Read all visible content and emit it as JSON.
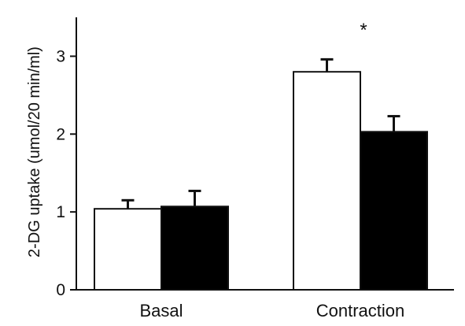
{
  "chart_data": {
    "type": "bar",
    "title": "",
    "xlabel": "",
    "ylabel": "2-DG uptake (umol/20 min/ml)",
    "ylim": [
      0,
      3.5
    ],
    "yticks": [
      "0",
      "1",
      "2",
      "3"
    ],
    "categories": [
      "Basal",
      "Contraction"
    ],
    "series": [
      {
        "fill": "#ffffff",
        "values": [
          1.04,
          2.8
        ],
        "errors": [
          0.11,
          0.16
        ]
      },
      {
        "fill": "#000000",
        "values": [
          1.07,
          2.03
        ],
        "errors": [
          0.2,
          0.2
        ]
      }
    ],
    "annotations": [
      {
        "category": "Contraction",
        "text": "*"
      }
    ],
    "grid": false,
    "legend": "none"
  }
}
